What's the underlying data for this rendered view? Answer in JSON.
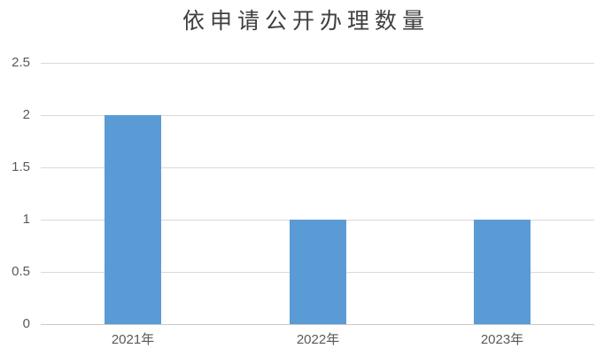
{
  "chart_data": {
    "type": "bar",
    "title": "依申请公开办理数量",
    "categories": [
      "2021年",
      "2022年",
      "2023年"
    ],
    "values": [
      2,
      1,
      1
    ],
    "xlabel": "",
    "ylabel": "",
    "ylim": [
      0,
      2.5
    ],
    "yticks": [
      "0",
      "0.5",
      "1",
      "1.5",
      "2",
      "2.5"
    ],
    "grid": true,
    "legend_position": "none",
    "bar_color": "#5B9BD5",
    "gridline_color": "#d9d9d9",
    "axis_line_color": "#c9c9c9",
    "axis_label_color": "#595959",
    "title_color": "#3f3f3f",
    "background_color": "#ffffff"
  }
}
